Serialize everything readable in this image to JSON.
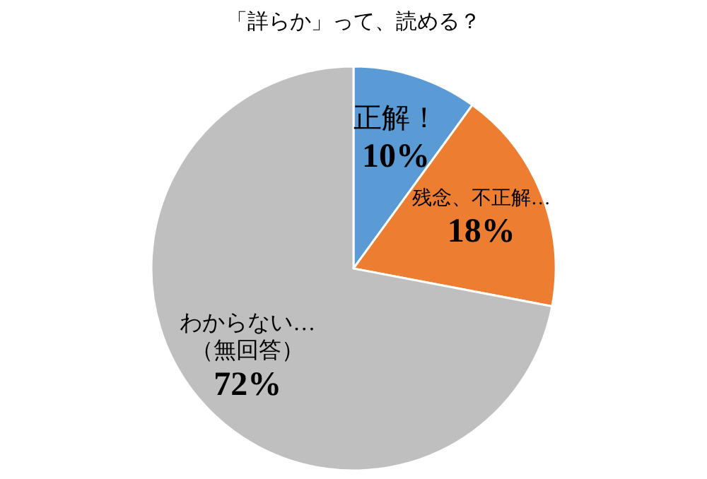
{
  "chart_data": {
    "type": "pie",
    "title": "「詳らか」って、読める？",
    "categories": [
      "正解！",
      "残念、不正解…",
      "わからない…\n（無回答）"
    ],
    "values": [
      10,
      18,
      72
    ],
    "colors": [
      "#5b9bd5",
      "#ed7d31",
      "#bfbfbf"
    ],
    "value_labels": [
      "10%",
      "18%",
      "72%"
    ]
  }
}
